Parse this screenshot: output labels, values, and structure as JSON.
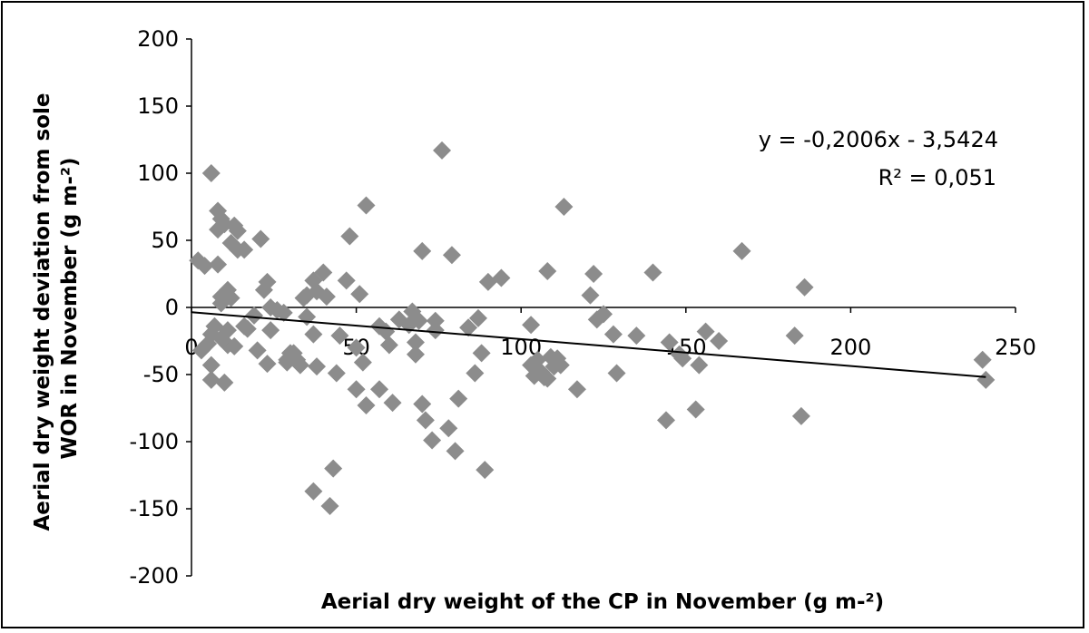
{
  "chart_data": {
    "type": "scatter",
    "title": "",
    "xlabel": "Aerial dry weight of the CP in November (g m-²)",
    "ylabel": "Aerial dry weight deviation from sole WOR in November (g m-²)",
    "xlim": [
      0,
      250
    ],
    "ylim": [
      -200,
      200
    ],
    "x_ticks": [
      "0",
      "50",
      "100",
      "150",
      "200",
      "250"
    ],
    "y_ticks": [
      "200",
      "150",
      "100",
      "50",
      "0",
      "-50",
      "-100",
      "-150",
      "-200"
    ],
    "marker": "diamond",
    "marker_color": "#8c8c8c",
    "trendline_color": "#000000",
    "equation": "y = -0,2006x - 3,5424",
    "r_squared": "R² = 0,051",
    "trendline": {
      "slope": -0.2006,
      "intercept": -3.5424
    },
    "series": [
      {
        "points": [
          [
            2,
            35
          ],
          [
            3,
            -32
          ],
          [
            4,
            31
          ],
          [
            5,
            -27
          ],
          [
            6,
            100
          ],
          [
            6,
            -20
          ],
          [
            6,
            -43
          ],
          [
            6,
            -54
          ],
          [
            7,
            -14
          ],
          [
            8,
            72
          ],
          [
            8,
            58
          ],
          [
            8,
            32
          ],
          [
            9,
            66
          ],
          [
            9,
            8
          ],
          [
            9,
            3
          ],
          [
            9,
            -23
          ],
          [
            10,
            62
          ],
          [
            10,
            -56
          ],
          [
            11,
            13
          ],
          [
            11,
            -17
          ],
          [
            11,
            -28
          ],
          [
            12,
            48
          ],
          [
            12,
            7
          ],
          [
            13,
            61
          ],
          [
            13,
            -29
          ],
          [
            14,
            57
          ],
          [
            14,
            43
          ],
          [
            16,
            43
          ],
          [
            16,
            -14
          ],
          [
            17,
            -16
          ],
          [
            19,
            -6
          ],
          [
            20,
            -32
          ],
          [
            21,
            51
          ],
          [
            22,
            13
          ],
          [
            23,
            19
          ],
          [
            23,
            -42
          ],
          [
            24,
            0
          ],
          [
            24,
            -17
          ],
          [
            26,
            -2
          ],
          [
            28,
            -4
          ],
          [
            29,
            -39
          ],
          [
            29,
            -41
          ],
          [
            30,
            -34
          ],
          [
            31,
            -34
          ],
          [
            32,
            -39
          ],
          [
            33,
            -43
          ],
          [
            34,
            7
          ],
          [
            35,
            9
          ],
          [
            35,
            -7
          ],
          [
            37,
            -20
          ],
          [
            37,
            20
          ],
          [
            37,
            -137
          ],
          [
            38,
            12
          ],
          [
            38,
            -44
          ],
          [
            40,
            26
          ],
          [
            41,
            8
          ],
          [
            42,
            -148
          ],
          [
            43,
            -120
          ],
          [
            44,
            -49
          ],
          [
            45,
            -21
          ],
          [
            47,
            20
          ],
          [
            48,
            53
          ],
          [
            50,
            -61
          ],
          [
            50,
            -30
          ],
          [
            51,
            10
          ],
          [
            52,
            -41
          ],
          [
            53,
            -73
          ],
          [
            53,
            76
          ],
          [
            57,
            -14
          ],
          [
            57,
            -61
          ],
          [
            59,
            -18
          ],
          [
            60,
            -28
          ],
          [
            61,
            -71
          ],
          [
            63,
            -9
          ],
          [
            66,
            -13
          ],
          [
            67,
            -3
          ],
          [
            68,
            -35
          ],
          [
            68,
            -26
          ],
          [
            69,
            -10
          ],
          [
            70,
            42
          ],
          [
            70,
            -72
          ],
          [
            71,
            -84
          ],
          [
            73,
            -99
          ],
          [
            74,
            -10
          ],
          [
            74,
            -17
          ],
          [
            76,
            117
          ],
          [
            78,
            -90
          ],
          [
            79,
            39
          ],
          [
            80,
            -107
          ],
          [
            81,
            -68
          ],
          [
            84,
            -15
          ],
          [
            86,
            -49
          ],
          [
            87,
            -8
          ],
          [
            88,
            -34
          ],
          [
            89,
            -121
          ],
          [
            90,
            19
          ],
          [
            94,
            22
          ],
          [
            103,
            -13
          ],
          [
            103,
            -43
          ],
          [
            104,
            -51
          ],
          [
            105,
            -39
          ],
          [
            106,
            -48
          ],
          [
            107,
            -52
          ],
          [
            108,
            -53
          ],
          [
            108,
            27
          ],
          [
            109,
            -37
          ],
          [
            110,
            -44
          ],
          [
            111,
            -38
          ],
          [
            112,
            -43
          ],
          [
            113,
            75
          ],
          [
            117,
            -61
          ],
          [
            121,
            9
          ],
          [
            122,
            25
          ],
          [
            123,
            -9
          ],
          [
            125,
            -5
          ],
          [
            128,
            -20
          ],
          [
            129,
            -49
          ],
          [
            135,
            -21
          ],
          [
            140,
            26
          ],
          [
            144,
            -84
          ],
          [
            145,
            -26
          ],
          [
            148,
            -35
          ],
          [
            149,
            -38
          ],
          [
            153,
            -76
          ],
          [
            154,
            -43
          ],
          [
            156,
            -18
          ],
          [
            160,
            -25
          ],
          [
            167,
            42
          ],
          [
            183,
            -21
          ],
          [
            185,
            -81
          ],
          [
            186,
            15
          ],
          [
            240,
            -39
          ],
          [
            241,
            -54
          ]
        ]
      }
    ]
  }
}
